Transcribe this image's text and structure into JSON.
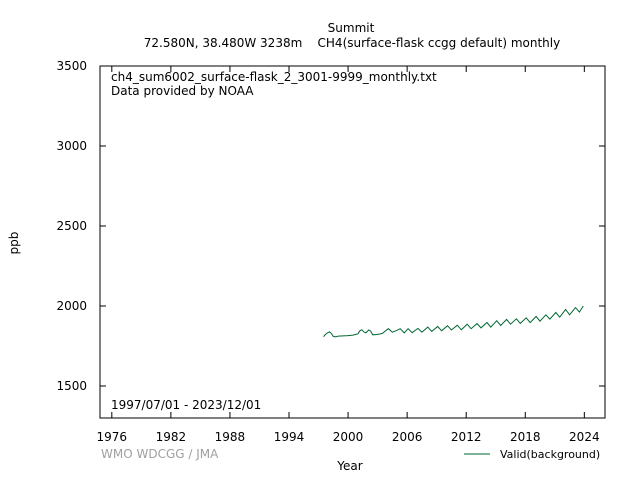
{
  "header": {
    "station": "Summit",
    "subtitle": "72.580N, 38.480W 3238m    CH4(surface-flask ccgg default) monthly"
  },
  "annotations": {
    "filename": "ch4_sum6002_surface-flask_2_3001-9999_monthly.txt",
    "provider": "Data provided by NOAA",
    "period": "1997/07/01 - 2023/12/01"
  },
  "credit": "WMO WDCGG / JMA",
  "colors": {
    "series": "#006633",
    "axis": "#000000",
    "credit": "#a0a0a0"
  },
  "chart_data": {
    "type": "line",
    "title": "Summit",
    "subtitle": "72.580N, 38.480W 3238m    CH4(surface-flask ccgg default) monthly",
    "xlabel": "Year",
    "ylabel": "ppb",
    "xlim": [
      1974.8,
      2026.1
    ],
    "ylim": [
      1300,
      3500
    ],
    "x_ticks": [
      1976,
      1982,
      1988,
      1994,
      2000,
      2006,
      2012,
      2018,
      2024
    ],
    "y_ticks": [
      1500,
      2000,
      2500,
      3000,
      3500
    ],
    "grid": false,
    "legend_position": "bottom-right",
    "series": [
      {
        "name": "Valid(background)",
        "color": "#006633",
        "x_start": "1997/07",
        "x_end": "2023/12",
        "trend": {
          "start": 1811,
          "end": 1993
        },
        "seasonal_amplitude": 15,
        "values": [
          [
            1997.5,
            1808
          ],
          [
            1997.7,
            1822
          ],
          [
            1997.9,
            1832
          ],
          [
            1998.1,
            1838
          ],
          [
            1998.3,
            1829
          ],
          [
            1998.5,
            1810
          ],
          [
            1998.7,
            1807
          ],
          [
            1999.0,
            1812
          ],
          [
            1999.5,
            1813
          ],
          [
            2000.0,
            1815
          ],
          [
            2000.5,
            1818
          ],
          [
            2001.0,
            1826
          ],
          [
            2001.2,
            1845
          ],
          [
            2001.4,
            1852
          ],
          [
            2001.6,
            1838
          ],
          [
            2001.8,
            1832
          ],
          [
            2002.1,
            1850
          ],
          [
            2002.3,
            1843
          ],
          [
            2002.5,
            1820
          ],
          [
            2003.0,
            1822
          ],
          [
            2003.5,
            1829
          ],
          [
            2003.7,
            1840
          ],
          [
            2004.1,
            1858
          ],
          [
            2004.5,
            1836
          ],
          [
            2005.0,
            1849
          ],
          [
            2005.3,
            1858
          ],
          [
            2005.7,
            1832
          ],
          [
            2006.1,
            1858
          ],
          [
            2006.5,
            1833
          ],
          [
            2007.1,
            1860
          ],
          [
            2007.5,
            1836
          ],
          [
            2008.1,
            1868
          ],
          [
            2008.5,
            1841
          ],
          [
            2009.1,
            1872
          ],
          [
            2009.5,
            1845
          ],
          [
            2010.1,
            1877
          ],
          [
            2010.5,
            1850
          ],
          [
            2011.1,
            1880
          ],
          [
            2011.5,
            1851
          ],
          [
            2012.1,
            1886
          ],
          [
            2012.5,
            1858
          ],
          [
            2013.1,
            1890
          ],
          [
            2013.5,
            1863
          ],
          [
            2014.1,
            1897
          ],
          [
            2014.5,
            1868
          ],
          [
            2015.1,
            1908
          ],
          [
            2015.5,
            1878
          ],
          [
            2016.1,
            1916
          ],
          [
            2016.5,
            1886
          ],
          [
            2017.1,
            1920
          ],
          [
            2017.5,
            1891
          ],
          [
            2018.1,
            1926
          ],
          [
            2018.5,
            1896
          ],
          [
            2019.1,
            1935
          ],
          [
            2019.5,
            1905
          ],
          [
            2020.1,
            1945
          ],
          [
            2020.5,
            1918
          ],
          [
            2021.1,
            1960
          ],
          [
            2021.5,
            1930
          ],
          [
            2022.1,
            1978
          ],
          [
            2022.5,
            1945
          ],
          [
            2023.1,
            1990
          ],
          [
            2023.5,
            1962
          ],
          [
            2023.9,
            2000
          ]
        ]
      }
    ]
  }
}
